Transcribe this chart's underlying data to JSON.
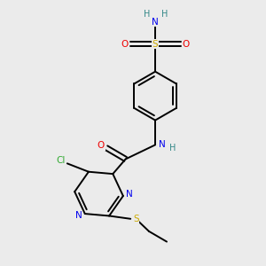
{
  "bg_color": "#ebebeb",
  "atom_colors": {
    "C": "#1a1a1a",
    "N": "#0000ee",
    "O": "#ee0000",
    "S_sulfonyl": "#ccaa00",
    "S_thio": "#ccaa00",
    "Cl": "#33aa33",
    "H": "#338888"
  },
  "figsize": [
    3.0,
    3.0
  ],
  "dpi": 100,
  "lw": 1.4,
  "fontsize": 7.5
}
